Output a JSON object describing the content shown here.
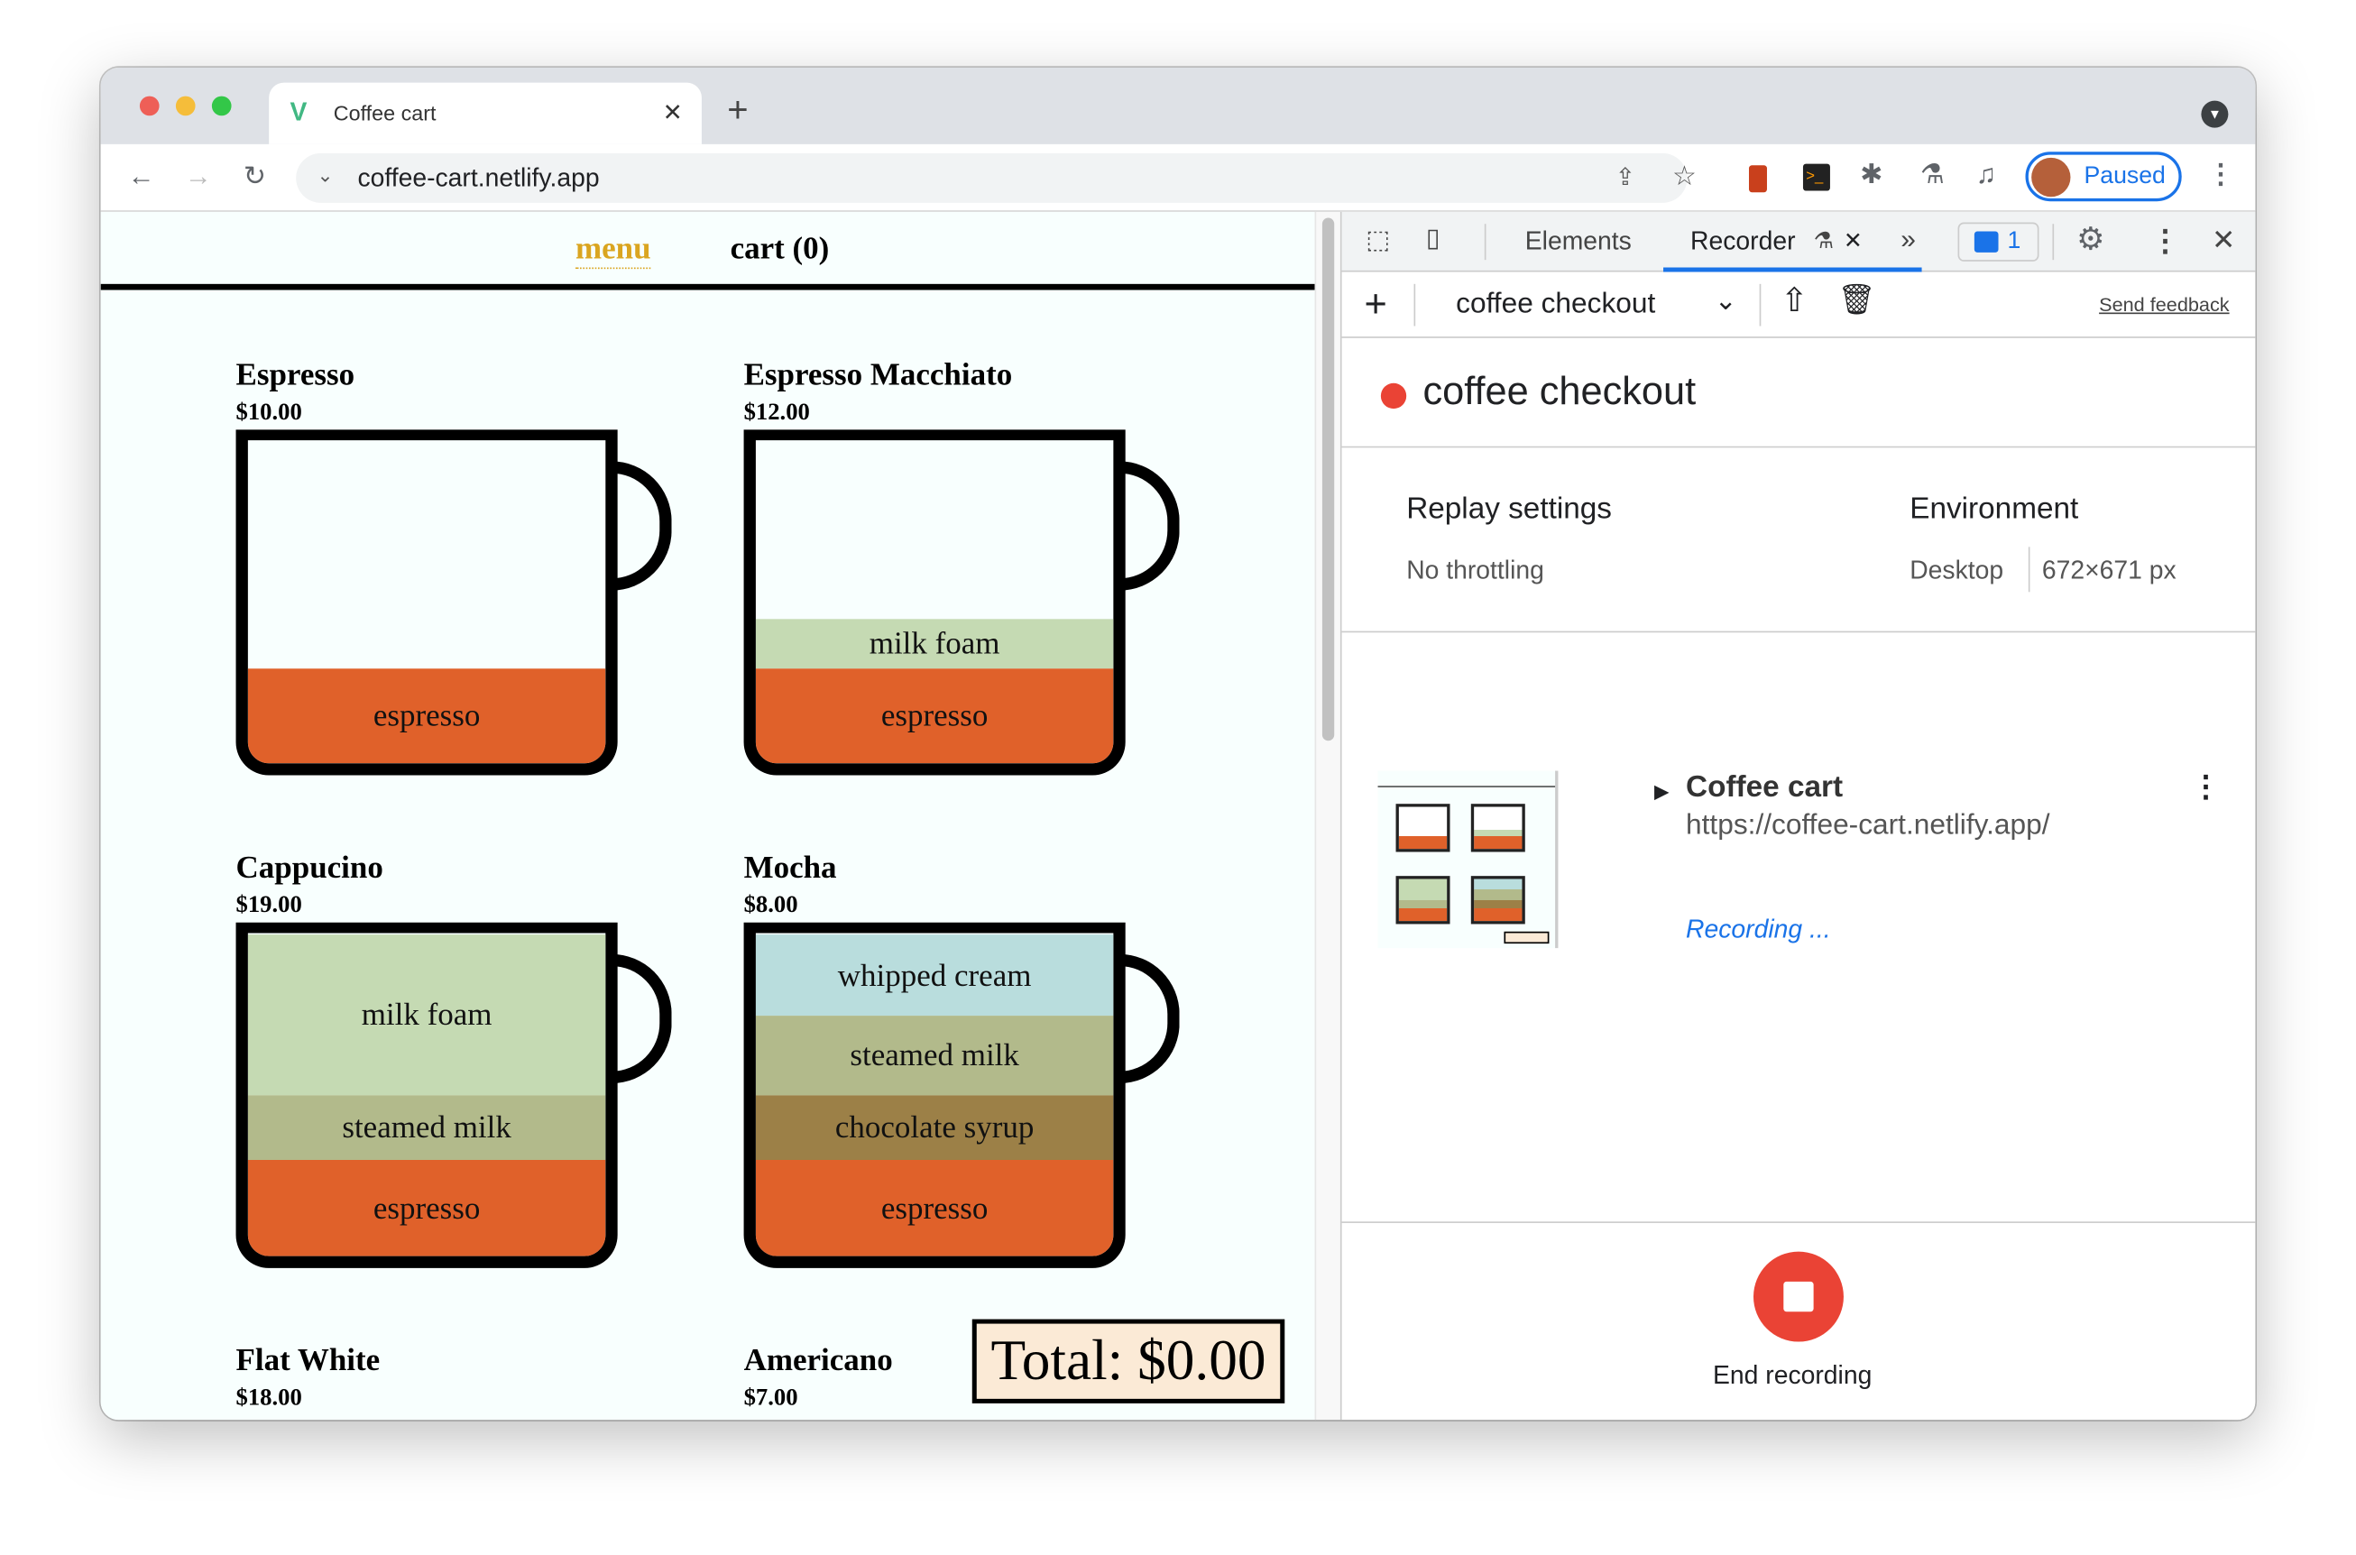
{
  "browser": {
    "tab_title": "Coffee cart",
    "url": "coffee-cart.netlify.app",
    "profile_label": "Paused"
  },
  "page": {
    "nav": {
      "menu": "menu",
      "cart": "cart (0)"
    },
    "drinks": [
      {
        "name": "Espresso",
        "price": "$10.00",
        "layers": [
          {
            "label": "espresso",
            "color": "#e0612a",
            "h": 63
          }
        ]
      },
      {
        "name": "Espresso Macchiato",
        "price": "$12.00",
        "layers": [
          {
            "label": "milk foam",
            "color": "#c5dab3",
            "h": 33
          },
          {
            "label": "espresso",
            "color": "#e0612a",
            "h": 63
          }
        ]
      },
      {
        "name": "Cappucino",
        "price": "$19.00",
        "layers": [
          {
            "label": "milk foam",
            "color": "#c5dab3",
            "h": 107
          },
          {
            "label": "steamed milk",
            "color": "#b2ba8b",
            "h": 43
          },
          {
            "label": "espresso",
            "color": "#e0612a",
            "h": 64
          }
        ]
      },
      {
        "name": "Mocha",
        "price": "$8.00",
        "layers": [
          {
            "label": "whipped cream",
            "color": "#b9dddd",
            "h": 54
          },
          {
            "label": "steamed milk",
            "color": "#b2ba8b",
            "h": 53
          },
          {
            "label": "chocolate syrup",
            "color": "#9c8047",
            "h": 43
          },
          {
            "label": "espresso",
            "color": "#e0612a",
            "h": 64
          }
        ]
      },
      {
        "name": "Flat White",
        "price": "$18.00",
        "layers": []
      },
      {
        "name": "Americano",
        "price": "$7.00",
        "layers": []
      }
    ],
    "total": "Total: $0.00"
  },
  "devtools": {
    "tabs": [
      "Elements",
      "Recorder"
    ],
    "issues_count": "1",
    "recording_select": "coffee checkout",
    "send_feedback": "Send feedback",
    "recording_title": "coffee checkout",
    "replay_settings": {
      "label": "Replay settings",
      "value": "No throttling"
    },
    "environment": {
      "label": "Environment",
      "device": "Desktop",
      "size": "672×671 px"
    },
    "step": {
      "title": "Coffee cart",
      "url": "https://coffee-cart.netlify.app/",
      "status": "Recording ..."
    },
    "end_recording": "End recording",
    "accent": "#1a73e8",
    "record_red": "#ea4335"
  }
}
